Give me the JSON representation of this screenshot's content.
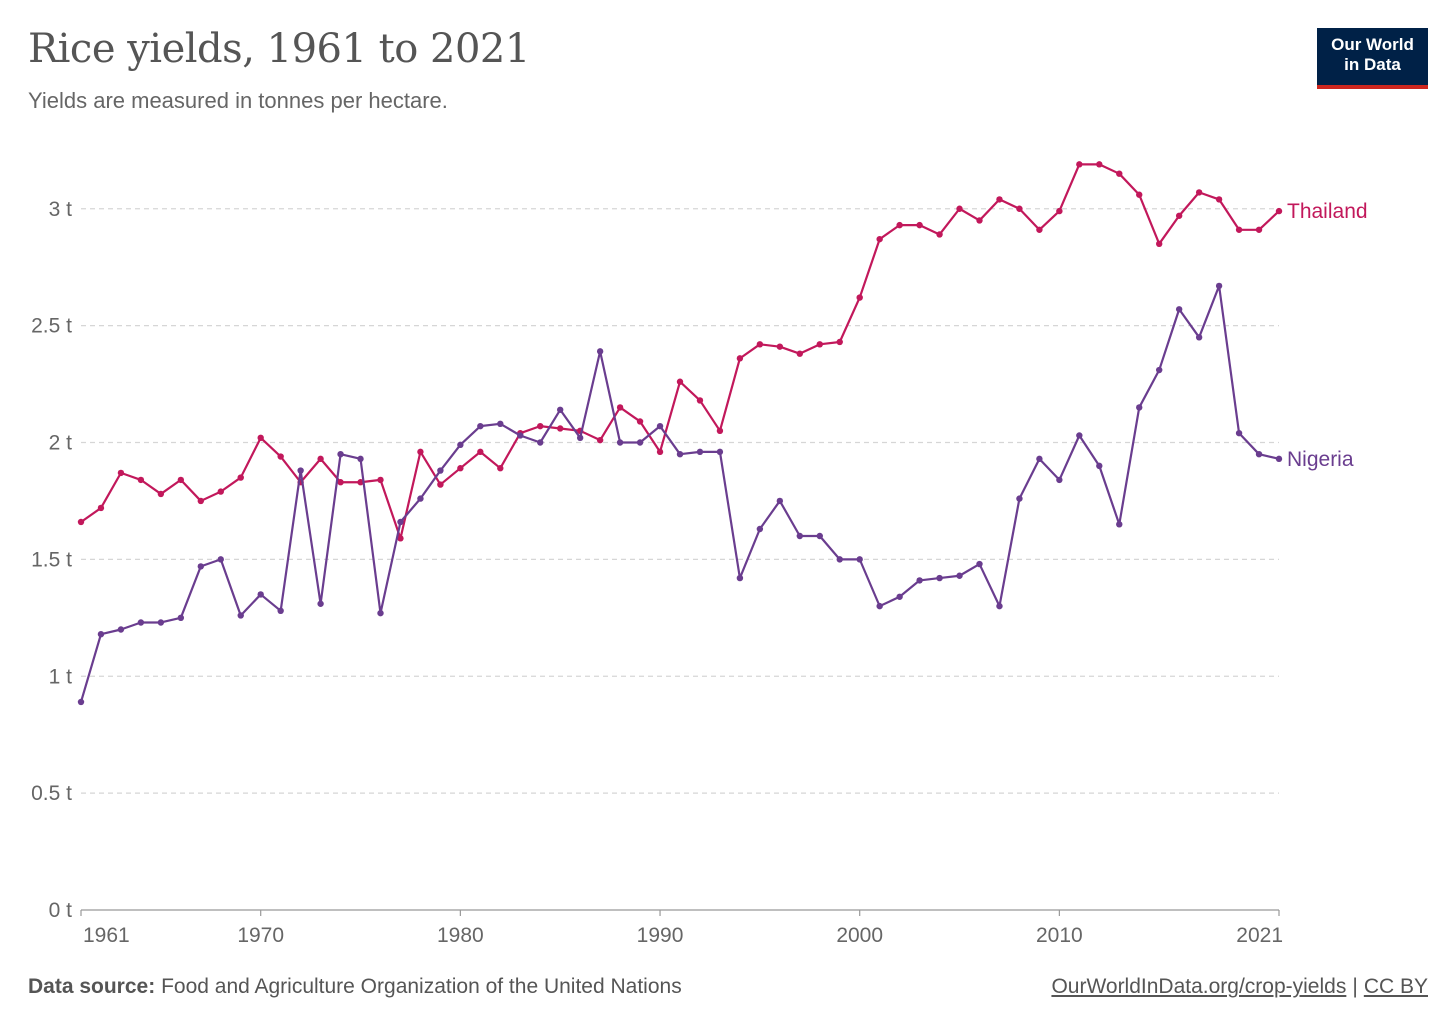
{
  "header": {
    "title": "Rice yields, 1961 to 2021",
    "subtitle": "Yields are measured in tonnes per hectare."
  },
  "logo": {
    "line1": "Our World",
    "line2": "in Data",
    "bg": "#002147",
    "accent": "#ce261e"
  },
  "footer": {
    "source_label": "Data source:",
    "source_text": "Food and Agriculture Organization of the United Nations",
    "link_text": "OurWorldInData.org/crop-yields",
    "separator": "|",
    "license": "CC BY"
  },
  "chart_data": {
    "type": "line",
    "title": "Rice yields, 1961 to 2021",
    "subtitle": "Yields are measured in tonnes per hectare.",
    "xlim": [
      1961,
      2021
    ],
    "ylim": [
      0,
      3.2
    ],
    "x_ticks": [
      1961,
      1970,
      1980,
      1990,
      2000,
      2010,
      2021
    ],
    "y_ticks": [
      {
        "value": 0,
        "label": "0 t"
      },
      {
        "value": 0.5,
        "label": "0.5 t"
      },
      {
        "value": 1,
        "label": "1 t"
      },
      {
        "value": 1.5,
        "label": "1.5 t"
      },
      {
        "value": 2,
        "label": "2 t"
      },
      {
        "value": 2.5,
        "label": "2.5 t"
      },
      {
        "value": 3,
        "label": "3 t"
      }
    ],
    "grid": "horizontal-dashed",
    "legend": "line-end labels",
    "x": [
      1961,
      1962,
      1963,
      1964,
      1965,
      1966,
      1967,
      1968,
      1969,
      1970,
      1971,
      1972,
      1973,
      1974,
      1975,
      1976,
      1977,
      1978,
      1979,
      1980,
      1981,
      1982,
      1983,
      1984,
      1985,
      1986,
      1987,
      1988,
      1989,
      1990,
      1991,
      1992,
      1993,
      1994,
      1995,
      1996,
      1997,
      1998,
      1999,
      2000,
      2001,
      2002,
      2003,
      2004,
      2005,
      2006,
      2007,
      2008,
      2009,
      2010,
      2011,
      2012,
      2013,
      2014,
      2015,
      2016,
      2017,
      2018,
      2019,
      2020,
      2021
    ],
    "series": [
      {
        "name": "Thailand",
        "color": "#c2185b",
        "values": [
          1.66,
          1.72,
          1.87,
          1.84,
          1.78,
          1.84,
          1.75,
          1.79,
          1.85,
          2.02,
          1.94,
          1.83,
          1.93,
          1.83,
          1.83,
          1.84,
          1.59,
          1.96,
          1.82,
          1.89,
          1.96,
          1.89,
          2.04,
          2.07,
          2.06,
          2.05,
          2.01,
          2.15,
          2.09,
          1.96,
          2.26,
          2.18,
          2.05,
          2.36,
          2.42,
          2.41,
          2.38,
          2.42,
          2.43,
          2.62,
          2.87,
          2.93,
          2.93,
          2.89,
          3.0,
          2.95,
          3.04,
          3.0,
          2.91,
          2.99,
          3.19,
          3.19,
          3.15,
          3.06,
          2.85,
          2.97,
          3.07,
          3.04,
          2.91,
          2.91,
          2.99
        ]
      },
      {
        "name": "Nigeria",
        "color": "#6a3d8f",
        "values": [
          0.89,
          1.18,
          1.2,
          1.23,
          1.23,
          1.25,
          1.47,
          1.5,
          1.26,
          1.35,
          1.28,
          1.88,
          1.31,
          1.95,
          1.93,
          1.27,
          1.66,
          1.76,
          1.88,
          1.99,
          2.07,
          2.08,
          2.03,
          2.0,
          2.14,
          2.02,
          2.39,
          2.0,
          2.0,
          2.07,
          1.95,
          1.96,
          1.96,
          1.42,
          1.63,
          1.75,
          1.6,
          1.6,
          1.5,
          1.5,
          1.3,
          1.34,
          1.41,
          1.42,
          1.43,
          1.48,
          1.3,
          1.76,
          1.93,
          1.84,
          2.03,
          1.9,
          1.65,
          2.15,
          2.31,
          2.57,
          2.45,
          2.67,
          2.04,
          1.95,
          1.93
        ]
      }
    ]
  }
}
